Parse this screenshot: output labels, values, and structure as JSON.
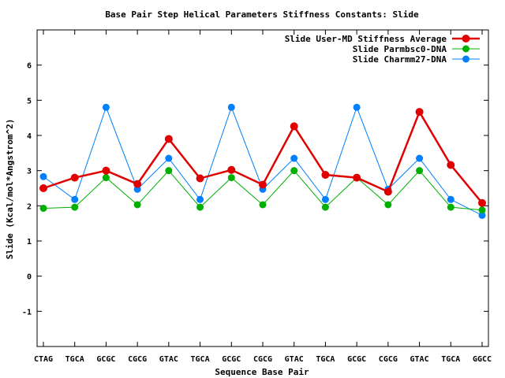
{
  "chart_data": {
    "type": "line",
    "title": "Base Pair Step Helical Parameters Stiffness Constants: Slide",
    "xlabel": "Sequence Base Pair",
    "ylabel": "Slide (Kcal/mol*Angstrom^2)",
    "categories": [
      "CTAG",
      "TGCA",
      "GCGC",
      "CGCG",
      "GTAC",
      "TGCA",
      "GCGC",
      "CGCG",
      "GTAC",
      "TGCA",
      "GCGC",
      "CGCG",
      "GTAC",
      "TGCA",
      "GGCC"
    ],
    "ylim": [
      -2,
      7
    ],
    "yticks": [
      -1,
      0,
      1,
      2,
      3,
      4,
      5,
      6
    ],
    "grid": false,
    "legend_position": "top-right",
    "series": [
      {
        "name": "Slide User-MD Stiffness Average",
        "color": "#e00000",
        "values": [
          2.5,
          2.8,
          3.0,
          2.62,
          3.9,
          2.78,
          3.02,
          2.6,
          4.26,
          2.88,
          2.8,
          2.4,
          4.67,
          3.16,
          2.08
        ]
      },
      {
        "name": "Slide Parmbsc0-DNA",
        "color": "#00b000",
        "values": [
          1.93,
          1.96,
          2.8,
          2.03,
          3.0,
          1.96,
          2.8,
          2.03,
          3.0,
          1.96,
          2.8,
          2.03,
          3.0,
          1.96,
          1.88
        ]
      },
      {
        "name": "Slide Charmm27-DNA",
        "color": "#0080ff",
        "values": [
          2.83,
          2.18,
          4.8,
          2.47,
          3.35,
          2.18,
          4.8,
          2.47,
          3.35,
          2.18,
          4.8,
          2.47,
          3.35,
          2.18,
          1.73
        ]
      }
    ]
  }
}
